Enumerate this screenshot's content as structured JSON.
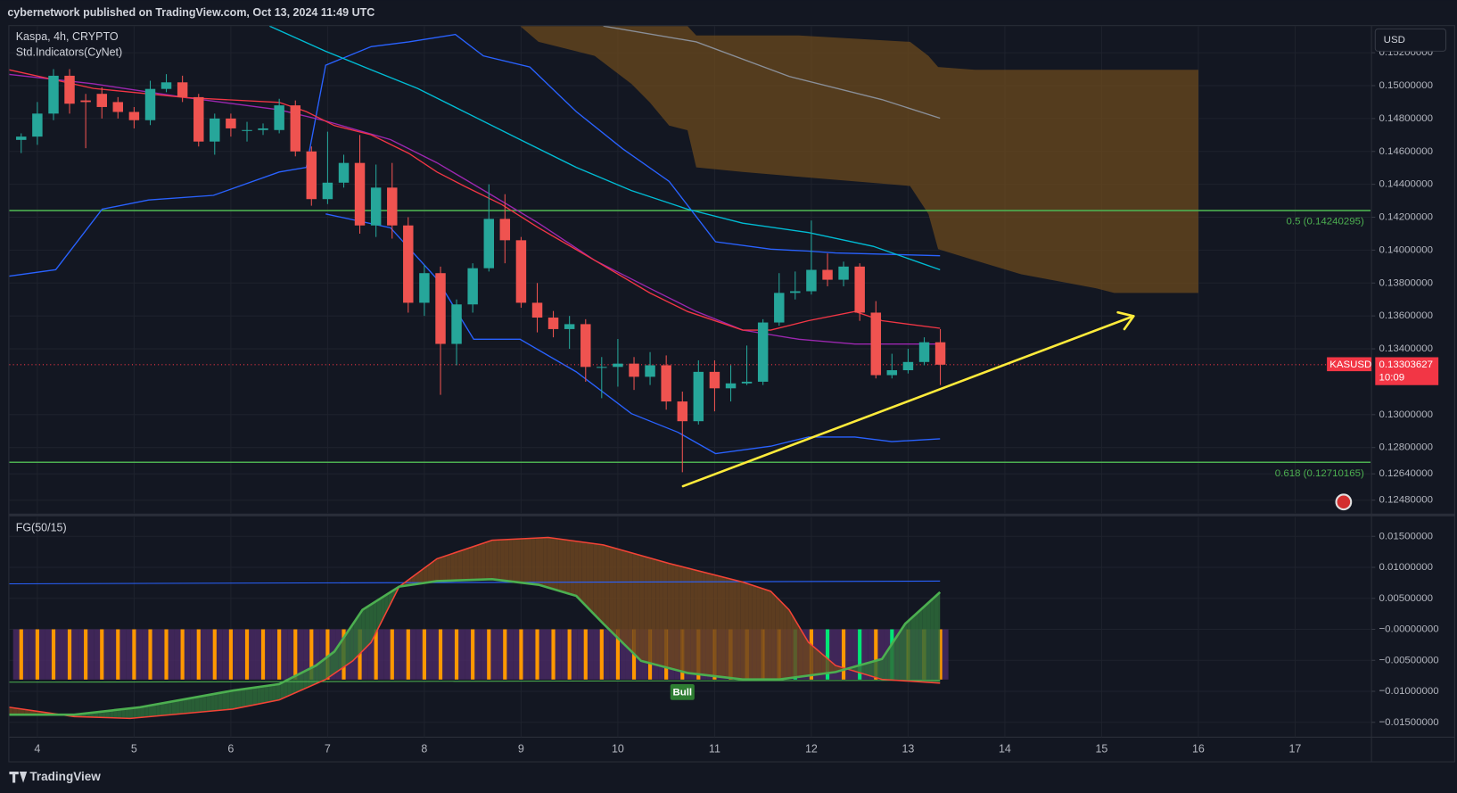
{
  "header": {
    "published": "cybernetwork published on TradingView.com, Oct 13, 2024 11:49 UTC",
    "symbol_info": "Kaspa, 4h, CRYPTO",
    "indicators": "Std.Indicators(CyNet)",
    "currency": "USD",
    "footer": "TradingView"
  },
  "chart_data": [
    {
      "type": "candlestick",
      "x": [
        3.833,
        4,
        4.167,
        4.333,
        4.5,
        4.667,
        4.833,
        5,
        5.167,
        5.333,
        5.5,
        5.667,
        5.833,
        6,
        6.167,
        6.333,
        6.5,
        6.667,
        6.833,
        7,
        7.167,
        7.333,
        7.5,
        7.667,
        7.833,
        8,
        8.167,
        8.333,
        8.5,
        8.667,
        8.833,
        9,
        9.167,
        9.333,
        9.5,
        9.667,
        9.833,
        10,
        10.167,
        10.333,
        10.5,
        10.667,
        10.833,
        11,
        11.167,
        11.333,
        11.5,
        11.667,
        11.833,
        12,
        12.167,
        12.333,
        12.5,
        12.667,
        12.833,
        13,
        13.167,
        13.333
      ],
      "open": [
        0.1467,
        0.1469,
        0.1483,
        0.1506,
        0.1491,
        0.1495,
        0.149,
        0.1484,
        0.1479,
        0.1498,
        0.1502,
        0.1493,
        0.1466,
        0.148,
        0.1473,
        0.1473,
        0.1473,
        0.1488,
        0.146,
        0.1431,
        0.1441,
        0.1453,
        0.1415,
        0.1438,
        0.1415,
        0.1368,
        0.1386,
        0.1343,
        0.1367,
        0.1389,
        0.1419,
        0.1406,
        0.1368,
        0.1359,
        0.1352,
        0.1355,
        0.1329,
        0.1329,
        0.1331,
        0.1323,
        0.133,
        0.1308,
        0.1296,
        0.1326,
        0.1316,
        0.1319,
        0.132,
        0.1356,
        0.1374,
        0.1375,
        0.1388,
        0.1382,
        0.139,
        0.1362,
        0.1324,
        0.1327,
        0.1332,
        0.1344
      ],
      "high": [
        0.1471,
        0.149,
        0.151,
        0.151,
        0.1495,
        0.1499,
        0.1493,
        0.1487,
        0.1503,
        0.1507,
        0.1506,
        0.1495,
        0.1483,
        0.1483,
        0.1478,
        0.1477,
        0.1492,
        0.1491,
        0.1463,
        0.1472,
        0.1458,
        0.147,
        0.1452,
        0.1453,
        0.142,
        0.1391,
        0.139,
        0.137,
        0.1392,
        0.144,
        0.1434,
        0.1408,
        0.138,
        0.1363,
        0.136,
        0.1358,
        0.1335,
        0.1346,
        0.1335,
        0.1338,
        0.1336,
        0.1314,
        0.1333,
        0.1333,
        0.133,
        0.1342,
        0.1358,
        0.1386,
        0.1387,
        0.1418,
        0.1398,
        0.1393,
        0.1392,
        0.1369,
        0.1337,
        0.134,
        0.1347,
        0.1352
      ],
      "low": [
        0.1459,
        0.1464,
        0.1479,
        0.1483,
        0.1462,
        0.148,
        0.148,
        0.1474,
        0.1476,
        0.1496,
        0.149,
        0.1463,
        0.1458,
        0.1469,
        0.1466,
        0.147,
        0.1471,
        0.1457,
        0.1427,
        0.1428,
        0.1438,
        0.141,
        0.1408,
        0.1407,
        0.1362,
        0.136,
        0.1312,
        0.133,
        0.1362,
        0.1387,
        0.1392,
        0.1365,
        0.135,
        0.1347,
        0.134,
        0.132,
        0.131,
        0.1317,
        0.1315,
        0.1318,
        0.1303,
        0.1265,
        0.1294,
        0.1302,
        0.1308,
        0.1318,
        0.1318,
        0.1354,
        0.137,
        0.1373,
        0.1378,
        0.1378,
        0.1357,
        0.1322,
        0.1322,
        0.1325,
        0.133,
        0.1318
      ],
      "close": [
        0.1469,
        0.1483,
        0.1506,
        0.1489,
        0.149,
        0.1487,
        0.1484,
        0.1479,
        0.1498,
        0.1502,
        0.1493,
        0.1466,
        0.148,
        0.1474,
        0.1473,
        0.1474,
        0.1488,
        0.146,
        0.1431,
        0.1441,
        0.1453,
        0.1415,
        0.1438,
        0.1415,
        0.1368,
        0.1386,
        0.1343,
        0.1367,
        0.1389,
        0.1419,
        0.1406,
        0.1368,
        0.1359,
        0.1352,
        0.1355,
        0.1329,
        0.1329,
        0.1331,
        0.1323,
        0.133,
        0.1308,
        0.1296,
        0.1326,
        0.1316,
        0.1319,
        0.132,
        0.1356,
        0.1374,
        0.1375,
        0.1388,
        0.1382,
        0.139,
        0.1362,
        0.1324,
        0.1327,
        0.1332,
        0.1344,
        0.13303627
      ],
      "up_color": "#26a69a",
      "down_color": "#ef5350",
      "xlim": [
        3.71,
        17.78
      ],
      "xticks": [
        4,
        5,
        6,
        7,
        8,
        9,
        10,
        11,
        12,
        13,
        14,
        15,
        16,
        17
      ],
      "ylim": [
        0.12401,
        0.15362
      ],
      "yticks": [
        {
          "value": 0.152,
          "label": "0.15200000"
        },
        {
          "value": 0.15,
          "label": "0.15000000"
        },
        {
          "value": 0.148,
          "label": "0.14800000"
        },
        {
          "value": 0.146,
          "label": "0.14600000"
        },
        {
          "value": 0.144,
          "label": "0.14400000"
        },
        {
          "value": 0.142,
          "label": "0.14200000"
        },
        {
          "value": 0.14,
          "label": "0.14000000"
        },
        {
          "value": 0.138,
          "label": "0.13800000"
        },
        {
          "value": 0.136,
          "label": "0.13600000"
        },
        {
          "value": 0.134,
          "label": "0.13400000"
        },
        {
          "value": 0.13,
          "label": "0.13000000"
        },
        {
          "value": 0.128,
          "label": "0.12800000"
        },
        {
          "value": 0.1264,
          "label": "0.12640000"
        },
        {
          "value": 0.1248,
          "label": "0.12480000"
        }
      ],
      "grid": true,
      "cloud": {
        "color": "#6b4a1e",
        "x": [
          8.99,
          9.18,
          9.76,
          10.14,
          10.33,
          10.53,
          10.72,
          10.81,
          11.29,
          11.87,
          13.02,
          13.21,
          13.31,
          13.69,
          14.17,
          14.94,
          15.13,
          16.0
        ],
        "upper": [
          0.15362,
          0.15362,
          0.15362,
          0.15362,
          0.15362,
          0.15362,
          0.15362,
          0.15305,
          0.15305,
          0.15305,
          0.15266,
          0.15181,
          0.15113,
          0.15096,
          0.15096,
          0.15096,
          0.15096,
          0.15096
        ],
        "lower": [
          0.15362,
          0.15266,
          0.15181,
          0.15011,
          0.14898,
          0.14757,
          0.14729,
          0.14503,
          0.14475,
          0.14446,
          0.1439,
          0.1422,
          0.14006,
          0.13938,
          0.13853,
          0.13768,
          0.1374,
          0.1374
        ]
      },
      "lines": [
        {
          "color": "#8a8f98",
          "x": [
            9.85,
            10.81,
            11.77,
            12.73,
            13.33
          ],
          "values": [
            0.15362,
            0.15266,
            0.15056,
            0.14915,
            0.14802
          ]
        },
        {
          "color": "#2962ff",
          "x": [
            3.71,
            4.19,
            4.67,
            5.15,
            5.82,
            6.5,
            6.78,
            6.98,
            7.45,
            7.84,
            8.32,
            8.61,
            9.09,
            9.57,
            10.05,
            10.53,
            11.01,
            11.58,
            11.97,
            12.25,
            13.33
          ],
          "values": [
            0.13842,
            0.13881,
            0.14249,
            0.14305,
            0.14333,
            0.14475,
            0.14503,
            0.15124,
            0.15237,
            0.15266,
            0.15311,
            0.15181,
            0.15113,
            0.14842,
            0.14616,
            0.14418,
            0.14051,
            0.14006,
            0.13994,
            0.13983,
            0.13966
          ]
        },
        {
          "color": "#2962ff",
          "x": [
            6.98,
            7.65,
            8.13,
            8.51,
            8.99,
            9.57,
            10.14,
            10.62,
            11.01,
            11.58,
            11.97,
            12.45,
            12.83,
            13.33
          ],
          "values": [
            0.1422,
            0.14136,
            0.13825,
            0.13458,
            0.13458,
            0.1326,
            0.13006,
            0.12893,
            0.12763,
            0.12808,
            0.12864,
            0.12864,
            0.12836,
            0.12853
          ]
        },
        {
          "color": "#00bcd4",
          "x": [
            6.4,
            6.98,
            7.45,
            7.93,
            8.41,
            8.99,
            9.57,
            10.14,
            10.72,
            11.29,
            11.97,
            12.64,
            13.33
          ],
          "values": [
            0.15362,
            0.15209,
            0.15096,
            0.14983,
            0.14842,
            0.14672,
            0.14503,
            0.14362,
            0.14249,
            0.14164,
            0.14107,
            0.14023,
            0.13881
          ]
        },
        {
          "color": "#9c27b0",
          "x": [
            3.71,
            4.58,
            5.54,
            6.5,
            6.98,
            7.65,
            8.13,
            8.7,
            9.18,
            9.76,
            10.33,
            10.81,
            11.29,
            11.87,
            12.45,
            13.33
          ],
          "values": [
            0.15068,
            0.15011,
            0.14927,
            0.14853,
            0.14785,
            0.14672,
            0.14531,
            0.14333,
            0.14164,
            0.13938,
            0.13768,
            0.13627,
            0.13514,
            0.13458,
            0.13429,
            0.13429
          ]
        },
        {
          "color": "#f23645",
          "x": [
            3.71,
            4.58,
            5.54,
            6.5,
            6.78,
            7.07,
            7.45,
            7.84,
            8.13,
            8.41,
            8.8,
            9.18,
            9.76,
            10.33,
            10.72,
            11.29,
            11.58,
            11.97,
            12.45,
            12.73,
            13.33
          ],
          "values": [
            0.15096,
            0.14983,
            0.14927,
            0.14898,
            0.14842,
            0.14757,
            0.14701,
            0.14588,
            0.14475,
            0.1439,
            0.14277,
            0.14136,
            0.13938,
            0.1374,
            0.13627,
            0.13514,
            0.13514,
            0.13571,
            0.13627,
            0.13571,
            0.13525
          ]
        }
      ],
      "levels": [
        {
          "value": 0.14240295,
          "label": "0.5 (0.14240295)",
          "color": "#4caf50"
        },
        {
          "value": 0.12710165,
          "label": "0.618 (0.12710165)",
          "color": "#4caf50"
        }
      ],
      "last_price": {
        "value": 0.13303627,
        "label": "0.13303627"
      },
      "symbol": "KASUSD",
      "countdown": "10:09",
      "price_color": "#f23645"
    },
    {
      "type": "oscillator",
      "title": "FG(50/15)",
      "ylim": [
        -0.0174,
        0.01814
      ],
      "yticks": [
        {
          "value": 0.015,
          "label": "0.01500000"
        },
        {
          "value": 0.01,
          "label": "0.01000000"
        },
        {
          "value": 0.005,
          "label": "0.00500000"
        },
        {
          "value": 0,
          "label": "−0.00000000"
        },
        {
          "value": -0.005,
          "label": "−0.00500000"
        },
        {
          "value": -0.01,
          "label": "−0.01000000"
        },
        {
          "value": -0.015,
          "label": "−0.01500000"
        }
      ],
      "histogram": {
        "fill": "#4b2a66",
        "values": [
          -0.0081,
          -0.0081,
          -0.0081,
          -0.0081,
          -0.0081,
          -0.0081,
          -0.0081,
          -0.0081,
          -0.0081,
          -0.0081,
          -0.0081,
          -0.0081,
          -0.0081,
          -0.0081,
          -0.0081,
          -0.0081,
          -0.0081,
          -0.0081,
          -0.0081,
          -0.0081,
          -0.0081,
          -0.0081,
          -0.0081,
          -0.0081,
          -0.0081,
          -0.0081,
          -0.0081,
          -0.0081,
          -0.0081,
          -0.0081,
          -0.0081,
          -0.0081,
          -0.0081,
          -0.0081,
          -0.0081,
          -0.0081,
          -0.0081,
          -0.0081,
          -0.0081,
          -0.0081,
          -0.0081,
          -0.0081,
          -0.0081,
          -0.0081,
          -0.0081,
          -0.0081,
          -0.0081,
          -0.0081,
          -0.0081,
          -0.0081,
          -0.0081,
          -0.0081,
          -0.0081,
          -0.0081,
          -0.0081,
          -0.0081,
          -0.0081,
          -0.0081
        ],
        "colors": [
          "#ff9800",
          "#ff9800",
          "#ff9800",
          "#ff9800",
          "#ff9800",
          "#ff9800",
          "#ff9800",
          "#ff9800",
          "#ff9800",
          "#ff9800",
          "#ff9800",
          "#ff9800",
          "#ff9800",
          "#ff9800",
          "#ff9800",
          "#ff9800",
          "#ff9800",
          "#ff9800",
          "#ff9800",
          "#ff9800",
          "#ff9800",
          "#ff9800",
          "#ff9800",
          "#ff9800",
          "#ff9800",
          "#ff9800",
          "#ff9800",
          "#ff9800",
          "#ff9800",
          "#ff9800",
          "#ff9800",
          "#ff9800",
          "#ff9800",
          "#ff9800",
          "#ff9800",
          "#ff9800",
          "#ff9800",
          "#ff9800",
          "#ff9800",
          "#ff9800",
          "#ff9800",
          "#ff9800",
          "#ff9800",
          "#ff9800",
          "#ff9800",
          "#ff9800",
          "#ff9800",
          "#ff9800",
          "#00e676",
          "#ff9800",
          "#00e676",
          "#ff9800",
          "#00e676",
          "#ff9800",
          "#00e676",
          "#ff9800",
          "#ff9800",
          "#ff9800"
        ]
      },
      "slow": {
        "color": "#f44336",
        "x": [
          3.71,
          4.38,
          4.96,
          6.02,
          6.5,
          6.98,
          7.26,
          7.45,
          7.74,
          8.13,
          8.7,
          9.28,
          9.85,
          10.53,
          11.29,
          11.58,
          11.77,
          11.97,
          12.25,
          12.73,
          13.33
        ],
        "values": [
          -0.01257,
          -0.01407,
          -0.01437,
          -0.01287,
          -0.01138,
          -0.00808,
          -0.00509,
          -0.0021,
          0.00689,
          0.01138,
          0.01437,
          0.01482,
          0.01362,
          0.01063,
          0.00763,
          0.00614,
          0.00314,
          -0.0021,
          -0.00584,
          -0.00808,
          -0.00868
        ]
      },
      "fast": {
        "color": "#4caf50",
        "x": [
          3.71,
          4.38,
          5.06,
          6.02,
          6.5,
          6.88,
          7.07,
          7.36,
          7.74,
          8.13,
          8.7,
          9.18,
          9.57,
          9.85,
          10.24,
          10.72,
          11.29,
          11.67,
          12.25,
          12.73,
          12.97,
          13.33
        ],
        "values": [
          -0.01377,
          -0.01377,
          -0.01257,
          -0.00988,
          -0.00883,
          -0.00584,
          -0.00359,
          0.00314,
          0.00689,
          0.00778,
          0.00808,
          0.00719,
          0.00539,
          0.0009,
          -0.00509,
          -0.00704,
          -0.00808,
          -0.00808,
          -0.00689,
          -0.00479,
          0.0009,
          0.00599
        ]
      },
      "up_fill": "#2e6b3a",
      "down_fill": "#6b4420",
      "lines": [
        {
          "color": "#2962ff",
          "x": [
            3.71,
            13.33
          ],
          "values": [
            0.00734,
            0.00778
          ]
        },
        {
          "color": "#4caf50",
          "x": [
            3.71,
            13.33
          ],
          "values": [
            -0.00853,
            -0.00823
          ]
        }
      ],
      "signal": {
        "x": 10.667,
        "label": "Bull",
        "color": "#2e7d32"
      }
    }
  ]
}
